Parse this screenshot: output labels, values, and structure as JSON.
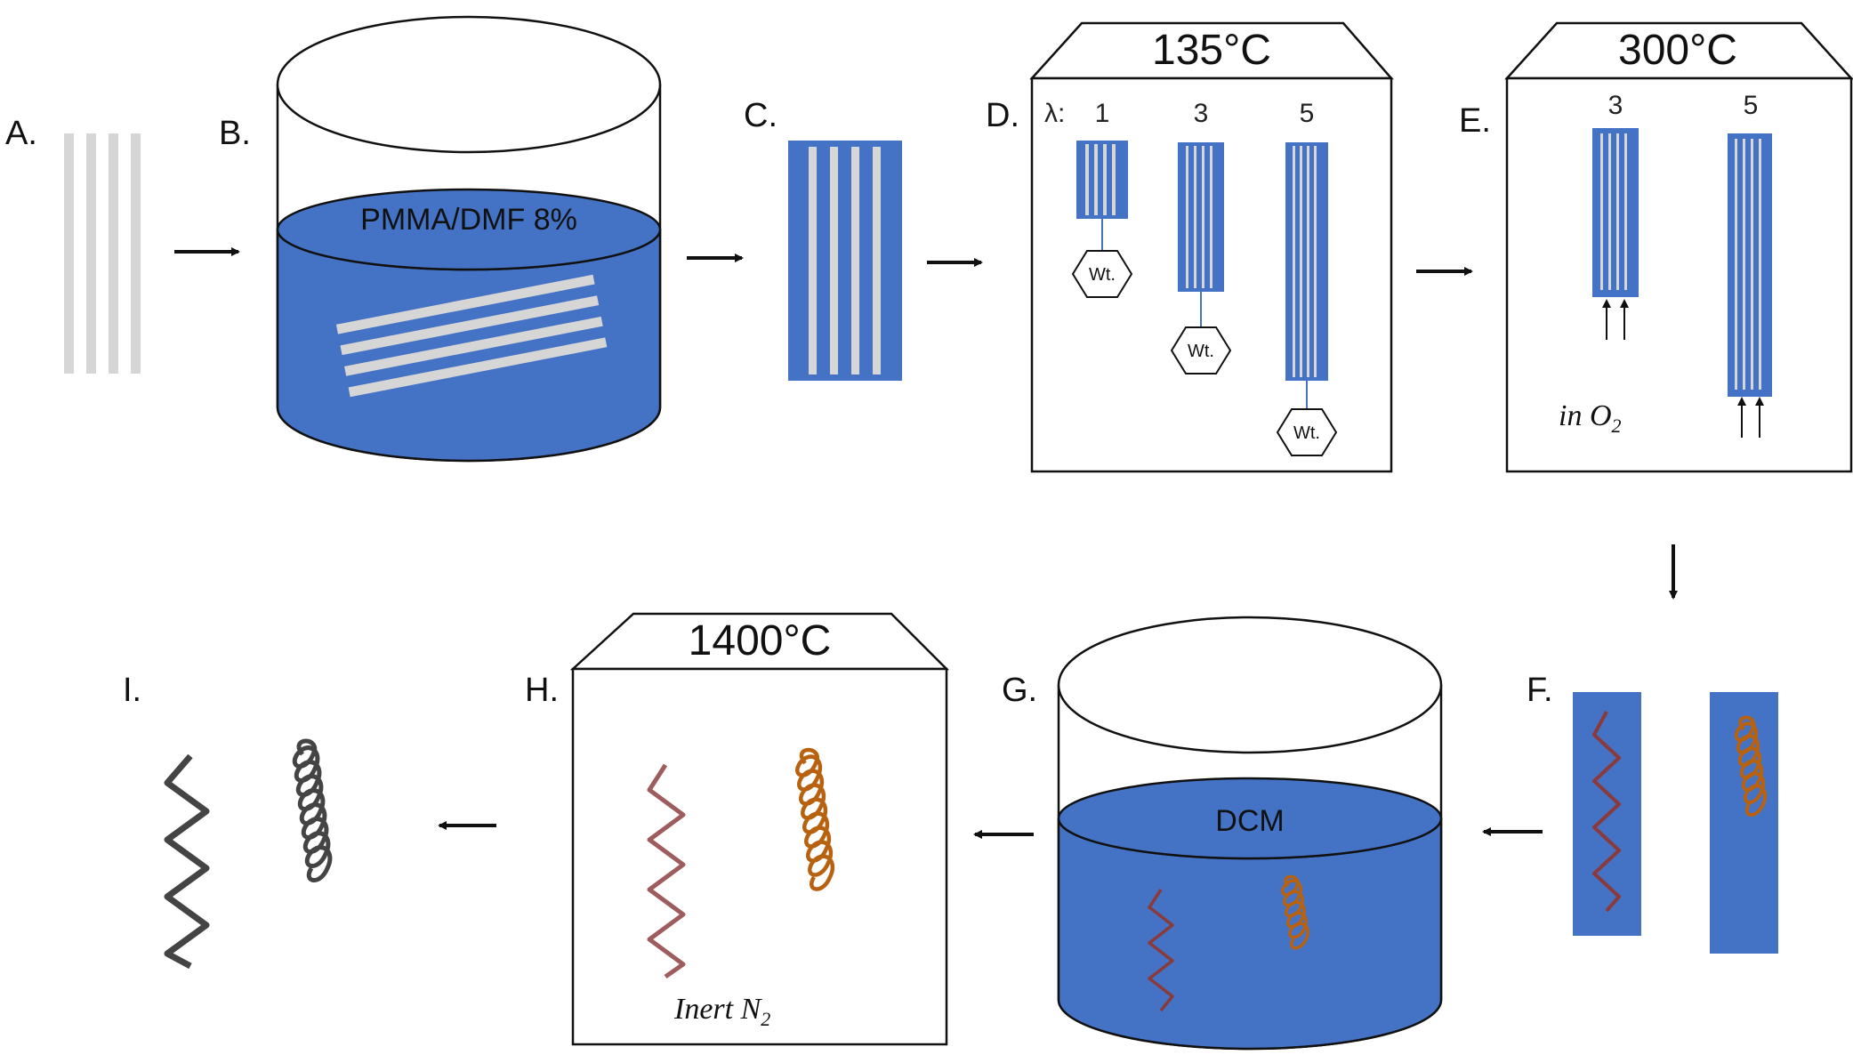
{
  "steps": {
    "a": "A.",
    "b": "B.",
    "c": "C.",
    "d": "D.",
    "e": "E.",
    "f": "F.",
    "g": "G.",
    "h": "H.",
    "i": "I."
  },
  "bath_b_label": "PMMA/DMF 8%",
  "oven_d": {
    "temperature": "135°C",
    "lambda_label": "λ:",
    "draw_ratios": [
      "1",
      "3",
      "5"
    ],
    "weight_label": "Wt."
  },
  "oven_e": {
    "temperature": "300°C",
    "draw_ratios": [
      "3",
      "5"
    ],
    "atmosphere": "in O",
    "atmosphere_subscript": "2"
  },
  "bath_g_label": "DCM",
  "oven_h": {
    "temperature": "1400°C",
    "atmosphere": "Inert N",
    "atmosphere_subscript": "2"
  },
  "colors": {
    "blue": "#4472c4",
    "fiber": "#d6d6d6",
    "coil_red": "#8b3a3a",
    "coil_orange": "#b8610f",
    "coil_pink": "#9e5c5c",
    "coil_dark": "#444444"
  }
}
